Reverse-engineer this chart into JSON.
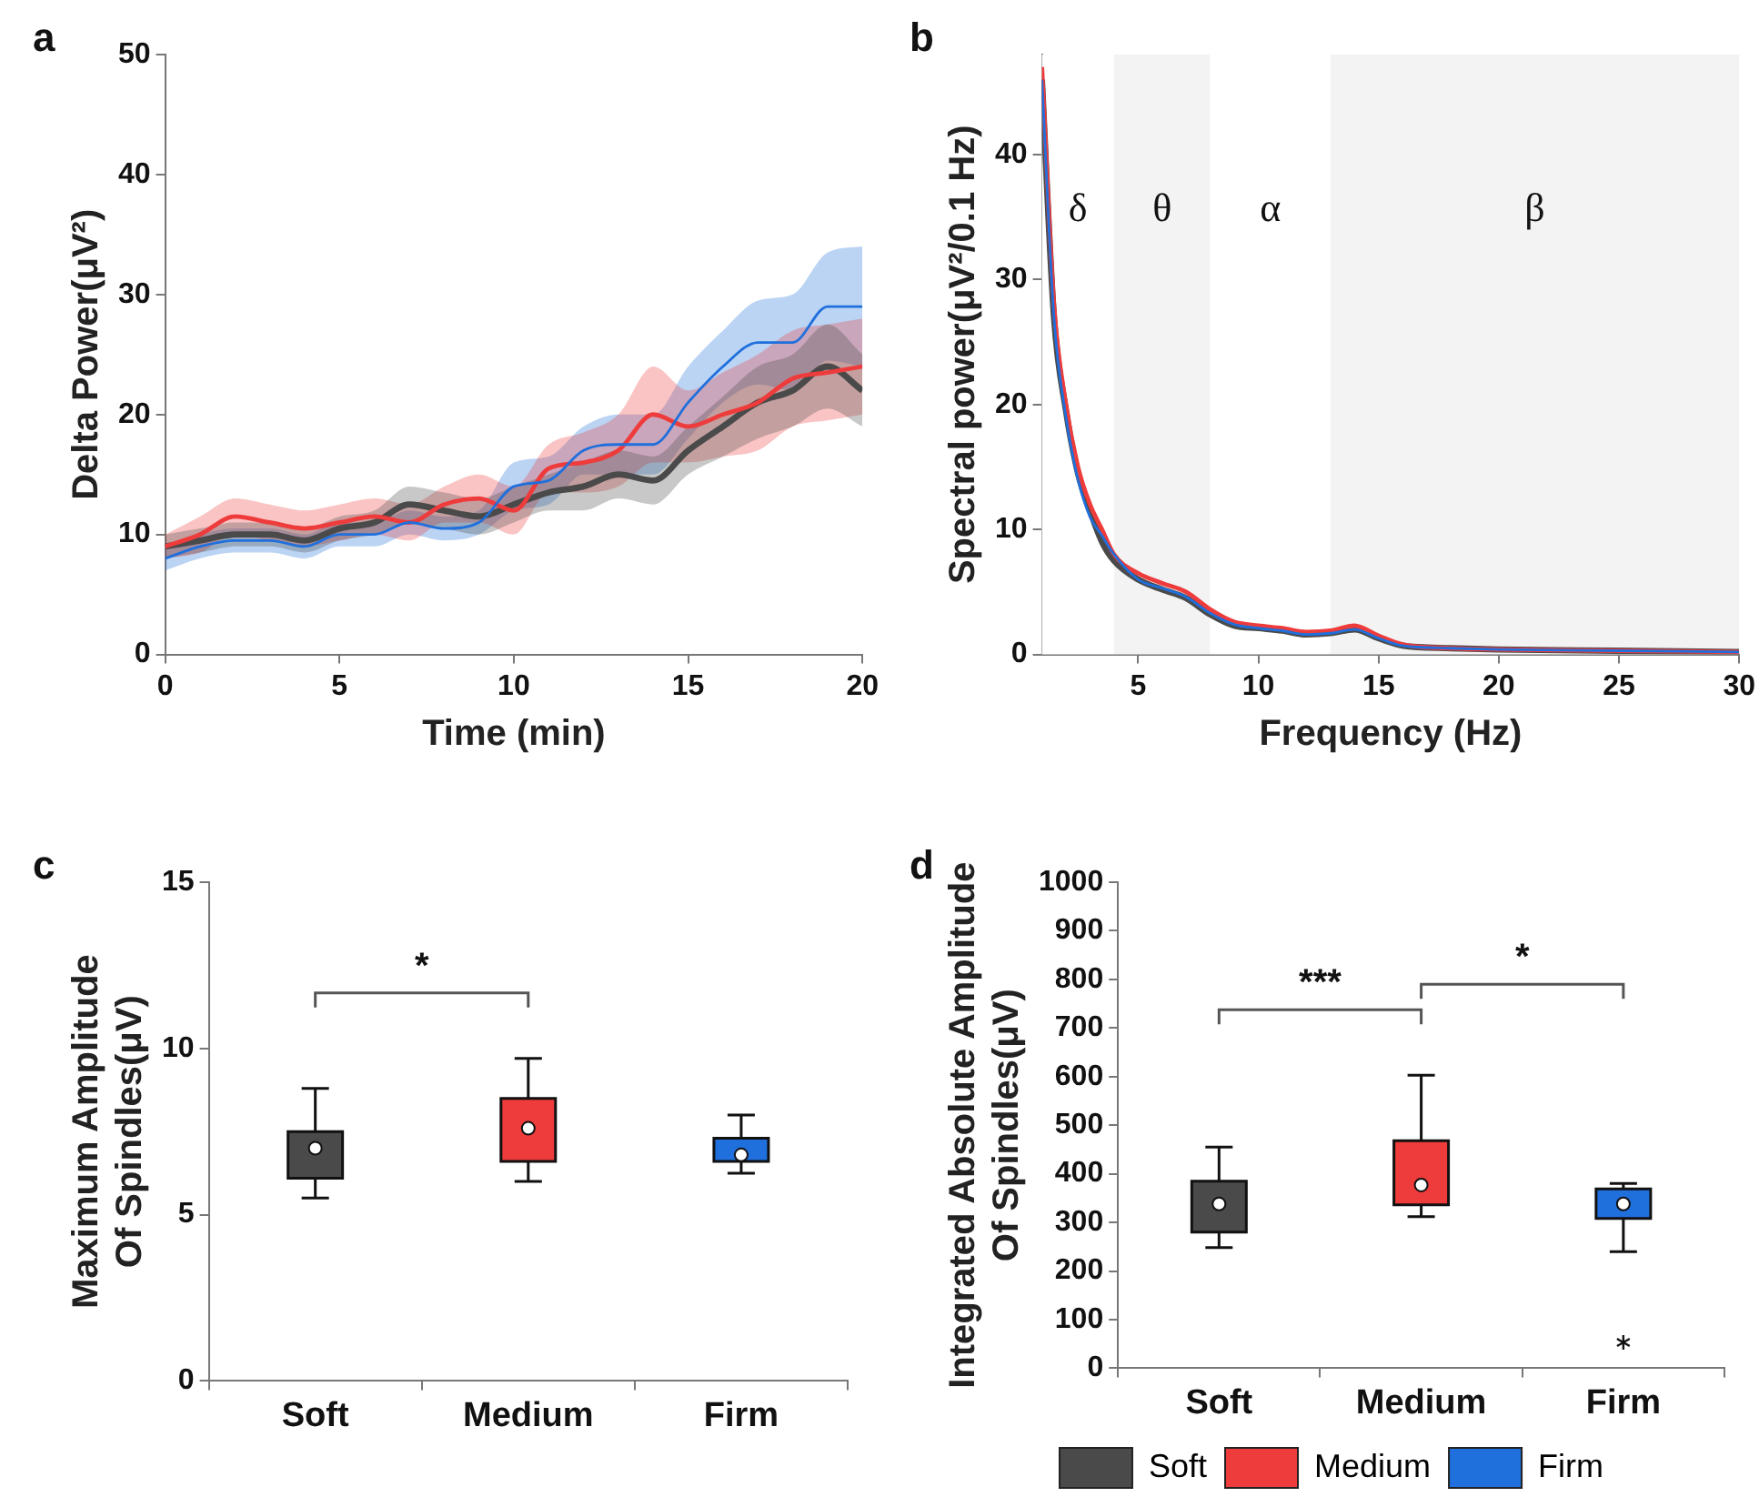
{
  "chart_data": [
    {
      "type": "line",
      "title": "a",
      "xlabel": "Time (min)",
      "ylabel": "Delta Power(μV²)",
      "x": [
        0,
        1,
        2,
        3,
        4,
        5,
        6,
        7,
        8,
        9,
        10,
        11,
        12,
        13,
        14,
        15,
        16,
        17,
        18,
        19,
        20
      ],
      "xlim": [
        0,
        20
      ],
      "xticks": [
        0,
        5,
        10,
        15,
        20
      ],
      "ylim": [
        0,
        50
      ],
      "yticks": [
        0,
        10,
        20,
        30,
        40,
        50
      ],
      "series": [
        {
          "color": "#4a4a4a",
          "values": [
            9,
            9.5,
            10,
            10,
            9.5,
            10.5,
            11,
            12.5,
            12,
            11.5,
            12.5,
            13.5,
            14,
            15,
            14.5,
            17,
            19,
            21,
            22,
            24,
            22
          ],
          "lower": [
            8,
            8.5,
            9,
            9,
            8.5,
            9.5,
            10,
            11,
            10.5,
            10,
            11,
            12,
            12,
            13,
            12.5,
            15,
            16.5,
            18,
            19,
            20.5,
            19
          ],
          "upper": [
            10,
            10.5,
            11,
            11,
            10.5,
            11.5,
            12,
            14,
            13.5,
            13,
            14,
            15,
            16,
            17,
            16.5,
            19,
            21.5,
            24,
            25,
            27.5,
            25
          ]
        },
        {
          "color": "#ee3b3b",
          "values": [
            9,
            10,
            11.5,
            11,
            10.5,
            11,
            11.5,
            11,
            12.5,
            13,
            12,
            15.5,
            16,
            17,
            20,
            19,
            20,
            21,
            23,
            23.5,
            24
          ],
          "lower": [
            8,
            8.5,
            10,
            9.5,
            9,
            9.5,
            10,
            9.5,
            11,
            11,
            10,
            13.5,
            13.5,
            14,
            16,
            16,
            16.5,
            17,
            19,
            19.5,
            20
          ],
          "upper": [
            10,
            11.5,
            13,
            12.5,
            12,
            12.5,
            13,
            12.5,
            14,
            15,
            14,
            17.5,
            18.5,
            20,
            24,
            22,
            23.5,
            25,
            27,
            27.5,
            28
          ]
        },
        {
          "color": "#1f6fdc",
          "values": [
            8,
            9,
            9.5,
            9.5,
            9,
            10,
            10,
            11,
            10.5,
            11,
            14,
            14.5,
            17,
            17.5,
            17.5,
            21,
            24,
            26,
            26,
            29,
            29
          ],
          "lower": [
            7,
            8,
            8.5,
            8.5,
            8,
            9,
            9,
            10,
            9.5,
            10,
            12,
            12.5,
            15,
            15,
            15,
            18,
            21,
            22.5,
            22,
            24.5,
            24
          ],
          "upper": [
            9,
            10,
            10.5,
            10.5,
            10,
            11,
            11,
            12,
            11.5,
            12,
            16,
            16.5,
            19,
            20,
            20,
            24,
            27,
            29.5,
            30,
            33.5,
            34
          ]
        }
      ]
    },
    {
      "type": "line",
      "title": "b",
      "xlabel": "Frequency (Hz)",
      "ylabel": "Spectral power(μV²/0.1 Hz)",
      "x": [
        1,
        1.5,
        2,
        2.5,
        3,
        3.5,
        4,
        5,
        6,
        7,
        8,
        9,
        10,
        11,
        12,
        13,
        14,
        15,
        16,
        18,
        20,
        25,
        30
      ],
      "xlim": [
        1,
        30
      ],
      "xticks": [
        5,
        10,
        15,
        20,
        25,
        30
      ],
      "ylim": [
        0,
        48
      ],
      "yticks": [
        0,
        10,
        20,
        30,
        40
      ],
      "bands": [
        {
          "axis": "x",
          "from": 1,
          "to": 4,
          "label": "δ",
          "color": "#ffffff"
        },
        {
          "axis": "x",
          "from": 4,
          "to": 8,
          "label": "θ",
          "color": "#f3f3f3"
        },
        {
          "axis": "x",
          "from": 8,
          "to": 13,
          "label": "α",
          "color": "#ffffff"
        },
        {
          "axis": "x",
          "from": 13,
          "to": 30,
          "label": "β",
          "color": "#f3f3f3"
        }
      ],
      "series": [
        {
          "color": "#4a4a4a",
          "values": [
            46,
            27,
            19.5,
            14.5,
            11.5,
            9,
            7.5,
            6,
            5.2,
            4.5,
            3.2,
            2.3,
            2.1,
            1.9,
            1.6,
            1.7,
            2,
            1.3,
            0.7,
            0.5,
            0.4,
            0.3,
            0.2
          ]
        },
        {
          "color": "#ee3b3b",
          "values": [
            47,
            28,
            20,
            15,
            12,
            10,
            8,
            6.5,
            5.7,
            5,
            3.6,
            2.6,
            2.3,
            2.1,
            1.8,
            1.9,
            2.3,
            1.5,
            0.8,
            0.5,
            0.4,
            0.3,
            0.2
          ]
        },
        {
          "color": "#1f6fdc",
          "values": [
            46,
            27,
            19,
            14,
            11,
            9.5,
            8,
            6,
            5.3,
            4.6,
            3.3,
            2.4,
            2.1,
            1.9,
            1.6,
            1.7,
            2,
            1.3,
            0.7,
            0.5,
            0.4,
            0.3,
            0.2
          ]
        }
      ]
    },
    {
      "type": "box",
      "title": "c",
      "ylabel": "Maximum Amplitude\nOf Spindles(μV)",
      "categories": [
        "Soft",
        "Medium",
        "Firm"
      ],
      "ylim": [
        0,
        15
      ],
      "yticks": [
        0,
        5,
        10,
        15
      ],
      "annotations": [
        "*"
      ],
      "series": [
        {
          "color": "#4a4a4a",
          "boxes": [
            {
              "low": 5.5,
              "q1": 6.1,
              "median": 7.0,
              "q3": 7.5,
              "high": 8.8
            },
            null,
            null
          ]
        },
        {
          "color": "#ee3b3b",
          "boxes": [
            null,
            {
              "low": 6.0,
              "q1": 6.6,
              "median": 7.6,
              "q3": 8.5,
              "high": 9.7
            },
            null
          ]
        },
        {
          "color": "#1f6fdc",
          "boxes": [
            null,
            null,
            {
              "low": 6.25,
              "q1": 6.6,
              "median": 6.8,
              "q3": 7.3,
              "high": 8.0
            }
          ]
        }
      ]
    },
    {
      "type": "box",
      "title": "d",
      "ylabel": "Integrated Absolute Amplitude\nOf Spindles(μV)",
      "categories": [
        "Soft",
        "Medium",
        "Firm"
      ],
      "ylim": [
        0,
        1000
      ],
      "yticks": [
        0,
        100,
        200,
        300,
        400,
        500,
        600,
        700,
        800,
        900,
        1000
      ],
      "annotations": [
        "***",
        "*"
      ],
      "legend": "bottom",
      "series": [
        {
          "name": "Soft",
          "color": "#4a4a4a",
          "boxes": [
            {
              "low": 248,
              "q1": 280,
              "median": 338,
              "q3": 385,
              "high": 455
            },
            null,
            null
          ]
        },
        {
          "name": "Medium",
          "color": "#ee3b3b",
          "boxes": [
            null,
            {
              "low": 312,
              "q1": 336,
              "median": 377,
              "q3": 468,
              "high": 603
            },
            null
          ]
        },
        {
          "name": "Firm",
          "color": "#1f6fdc",
          "boxes": [
            null,
            null,
            {
              "low": 240,
              "q1": 308,
              "median": 338,
              "q3": 369,
              "high": 380,
              "outliers": [
                53
              ]
            }
          ]
        }
      ]
    }
  ]
}
